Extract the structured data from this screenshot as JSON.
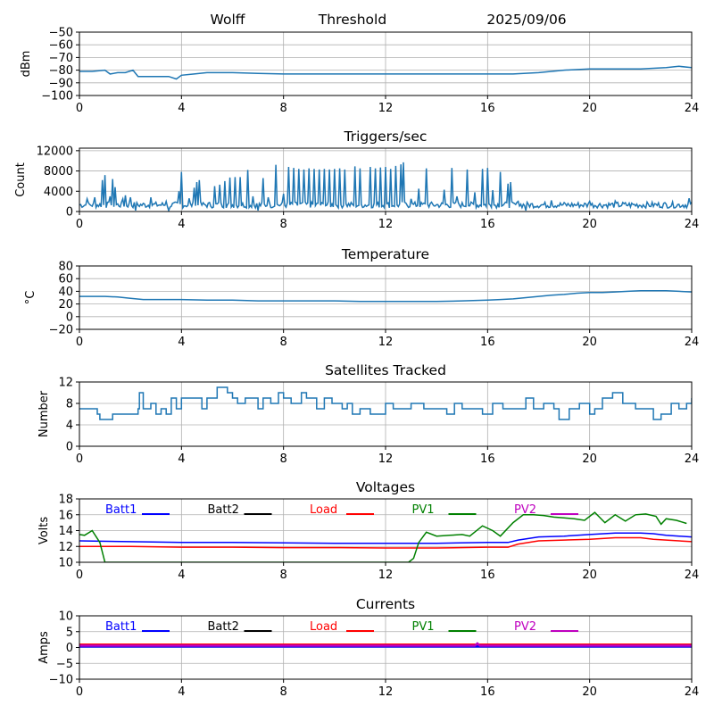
{
  "header": {
    "station": "Wolff",
    "mode": "Threshold",
    "date": "2025/09/06"
  },
  "x_ticks": [
    0,
    4,
    8,
    12,
    16,
    20,
    24
  ],
  "colors": {
    "line": "#1f77b4",
    "grid": "#b0b0b0",
    "Batt1": "#0000ff",
    "Batt2": "#000000",
    "Load": "#ff0000",
    "PV1": "#008000",
    "PV2": "#bf00bf"
  },
  "legend_labels": [
    "Batt1",
    "Batt2",
    "Load",
    "PV1",
    "PV2"
  ],
  "chart_data": [
    {
      "id": "threshold",
      "type": "line",
      "title": "",
      "ylabel": "dBm",
      "xlim": [
        0,
        24
      ],
      "ylim": [
        -100,
        -50
      ],
      "yticks": [
        -100,
        -90,
        -80,
        -70,
        -60,
        -50
      ],
      "yticklabels": [
        "−100",
        "−90",
        "−80",
        "−70",
        "−60",
        "−50"
      ],
      "series": [
        {
          "x": [
            0,
            0.5,
            1,
            1.2,
            1.5,
            1.8,
            2.1,
            2.3,
            2.5,
            3,
            3.5,
            3.8,
            4,
            4.5,
            5,
            6,
            7,
            8,
            9,
            10,
            11,
            12,
            13,
            14,
            15,
            16,
            17,
            18,
            19,
            20,
            21,
            22,
            23,
            23.5,
            24
          ],
          "y": [
            -81,
            -81,
            -80,
            -83,
            -82,
            -82,
            -80,
            -85,
            -85,
            -85,
            -85,
            -87,
            -84,
            -83,
            -82,
            -82,
            -82.5,
            -83,
            -83,
            -83,
            -83,
            -83,
            -83,
            -83,
            -83,
            -83,
            -83,
            -82,
            -80,
            -79,
            -79,
            -79,
            -78,
            -77,
            -78
          ]
        }
      ]
    },
    {
      "id": "triggers",
      "type": "line",
      "title": "Triggers/sec",
      "ylabel": "Count",
      "xlim": [
        0,
        24
      ],
      "ylim": [
        0,
        12500
      ],
      "yticks": [
        0,
        4000,
        8000,
        12000
      ],
      "yticklabels": [
        "0",
        "4000",
        "8000",
        "12000"
      ],
      "baseline": 1300,
      "spikes": [
        [
          0.3,
          2500
        ],
        [
          0.6,
          2800
        ],
        [
          0.9,
          6200
        ],
        [
          1.0,
          7200
        ],
        [
          1.2,
          3000
        ],
        [
          1.3,
          6400
        ],
        [
          1.4,
          4800
        ],
        [
          1.7,
          2500
        ],
        [
          1.8,
          3200
        ],
        [
          2.0,
          2800
        ],
        [
          2.8,
          2800
        ],
        [
          3.4,
          2000
        ],
        [
          3.9,
          4000
        ],
        [
          4.0,
          7800
        ],
        [
          4.3,
          2600
        ],
        [
          4.5,
          4700
        ],
        [
          4.6,
          5800
        ],
        [
          4.7,
          6200
        ],
        [
          5.3,
          5000
        ],
        [
          5.5,
          5300
        ],
        [
          5.7,
          6000
        ],
        [
          5.9,
          6700
        ],
        [
          6.1,
          6800
        ],
        [
          6.3,
          6800
        ],
        [
          6.6,
          8200
        ],
        [
          6.8,
          3000
        ],
        [
          7.2,
          6600
        ],
        [
          7.4,
          2800
        ],
        [
          7.7,
          9200
        ],
        [
          8.0,
          3500
        ],
        [
          8.2,
          8800
        ],
        [
          8.4,
          8600
        ],
        [
          8.6,
          8400
        ],
        [
          8.8,
          8300
        ],
        [
          9.0,
          8500
        ],
        [
          9.2,
          8400
        ],
        [
          9.4,
          8300
        ],
        [
          9.6,
          8400
        ],
        [
          9.8,
          8300
        ],
        [
          10.0,
          8400
        ],
        [
          10.2,
          8500
        ],
        [
          10.4,
          8300
        ],
        [
          10.8,
          8900
        ],
        [
          11.0,
          8500
        ],
        [
          11.4,
          8800
        ],
        [
          11.6,
          8500
        ],
        [
          11.8,
          8700
        ],
        [
          12.0,
          8800
        ],
        [
          12.2,
          8400
        ],
        [
          12.4,
          9000
        ],
        [
          12.6,
          9300
        ],
        [
          12.7,
          9700
        ],
        [
          13.0,
          2500
        ],
        [
          13.3,
          4500
        ],
        [
          13.6,
          8500
        ],
        [
          14.3,
          4300
        ],
        [
          14.6,
          8600
        ],
        [
          14.8,
          3000
        ],
        [
          15.2,
          8300
        ],
        [
          15.5,
          3800
        ],
        [
          15.8,
          8400
        ],
        [
          16.0,
          8600
        ],
        [
          16.2,
          4200
        ],
        [
          16.5,
          7800
        ],
        [
          16.8,
          5500
        ],
        [
          16.9,
          5800
        ],
        [
          17.2,
          2000
        ],
        [
          18.5,
          2200
        ],
        [
          20.0,
          2000
        ],
        [
          21.0,
          2100
        ],
        [
          23.9,
          2600
        ]
      ],
      "dips": [
        2.2,
        3.5,
        7.0,
        17.5
      ]
    },
    {
      "id": "temperature",
      "type": "line",
      "title": "Temperature",
      "ylabel": "°C",
      "xlim": [
        0,
        24
      ],
      "ylim": [
        -20,
        80
      ],
      "yticks": [
        -20,
        0,
        20,
        40,
        60,
        80
      ],
      "yticklabels": [
        "−20",
        "0",
        "20",
        "40",
        "60",
        "80"
      ],
      "series": [
        {
          "x": [
            0,
            0.5,
            1,
            1.5,
            2,
            2.5,
            3,
            4,
            5,
            6,
            7,
            8,
            9,
            10,
            11,
            12,
            13,
            14,
            15,
            16,
            16.5,
            17,
            17.5,
            18,
            18.5,
            19,
            19.5,
            20,
            20.5,
            21,
            21.5,
            22,
            22.5,
            23,
            23.5,
            24
          ],
          "y": [
            32,
            32,
            32,
            31,
            29,
            27,
            27,
            27,
            26,
            26,
            25,
            25,
            25,
            25,
            24,
            24,
            24,
            24,
            25,
            26,
            27,
            28,
            30,
            32,
            34,
            35,
            37,
            38,
            38,
            39,
            40,
            41,
            41,
            41,
            40,
            39
          ]
        }
      ]
    },
    {
      "id": "satellites",
      "type": "line",
      "title": "Satellites Tracked",
      "ylabel": "Number",
      "xlim": [
        0,
        24
      ],
      "ylim": [
        0,
        12
      ],
      "yticks": [
        0,
        4,
        8,
        12
      ],
      "yticklabels": [
        "0",
        "4",
        "8",
        "12"
      ],
      "series": [
        {
          "x": [
            0,
            0.6,
            0.7,
            0.8,
            1.2,
            1.3,
            2.3,
            2.35,
            2.5,
            2.8,
            3.0,
            3.2,
            3.4,
            3.6,
            3.8,
            4.0,
            4.5,
            4.8,
            5.0,
            5.2,
            5.4,
            5.8,
            6.0,
            6.2,
            6.5,
            7.0,
            7.2,
            7.5,
            7.8,
            8.0,
            8.3,
            8.7,
            8.9,
            9.3,
            9.6,
            9.9,
            10.3,
            10.5,
            10.7,
            11,
            11.4,
            12,
            12.3,
            12.6,
            13.0,
            13.5,
            14.0,
            14.4,
            14.7,
            15.0,
            15.4,
            15.8,
            16.2,
            16.6,
            17.0,
            17.5,
            17.8,
            18.2,
            18.6,
            18.8,
            19.2,
            19.6,
            20.0,
            20.2,
            20.5,
            20.9,
            21.3,
            21.8,
            22.2,
            22.5,
            22.8,
            23.2,
            23.5,
            23.8,
            24
          ],
          "y": [
            7,
            7,
            6,
            5,
            5,
            6,
            7,
            10,
            7,
            8,
            6,
            7,
            6,
            9,
            7,
            9,
            9,
            7,
            9,
            9,
            11,
            10,
            9,
            8,
            9,
            7,
            9,
            8,
            10,
            9,
            8,
            10,
            9,
            7,
            9,
            8,
            7,
            8,
            6,
            7,
            6,
            8,
            7,
            7,
            8,
            7,
            7,
            6,
            8,
            7,
            7,
            6,
            8,
            7,
            7,
            9,
            7,
            8,
            7,
            5,
            7,
            8,
            6,
            7,
            9,
            10,
            8,
            7,
            7,
            5,
            6,
            8,
            7,
            8,
            9
          ]
        }
      ]
    },
    {
      "id": "voltages",
      "type": "line",
      "title": "Voltages",
      "ylabel": "Volts",
      "xlim": [
        0,
        24
      ],
      "ylim": [
        10,
        18
      ],
      "yticks": [
        10,
        12,
        14,
        16,
        18
      ],
      "yticklabels": [
        "10",
        "12",
        "14",
        "16",
        "18"
      ],
      "series": [
        {
          "name": "Batt1",
          "x": [
            0,
            2,
            4,
            6,
            8,
            10,
            12,
            14,
            16,
            16.8,
            17.2,
            18,
            19,
            20,
            21,
            22,
            22.5,
            23,
            24
          ],
          "y": [
            12.7,
            12.6,
            12.5,
            12.5,
            12.45,
            12.4,
            12.4,
            12.4,
            12.5,
            12.5,
            12.8,
            13.2,
            13.3,
            13.5,
            13.7,
            13.7,
            13.6,
            13.4,
            13.2
          ]
        },
        {
          "name": "Load",
          "x": [
            0,
            2,
            4,
            6,
            8,
            10,
            12,
            14,
            16,
            16.8,
            17.2,
            18,
            19,
            20,
            21,
            22,
            22.5,
            23,
            24
          ],
          "y": [
            12.0,
            12.0,
            11.9,
            11.9,
            11.85,
            11.85,
            11.8,
            11.8,
            11.9,
            11.9,
            12.3,
            12.7,
            12.8,
            12.9,
            13.1,
            13.1,
            12.9,
            12.8,
            12.6
          ]
        },
        {
          "name": "PV1",
          "x": [
            0,
            0.2,
            0.5,
            0.8,
            1.0,
            1.05,
            12.9,
            13.1,
            13.3,
            13.6,
            14.0,
            14.5,
            15.0,
            15.3,
            15.8,
            16.2,
            16.5,
            17.0,
            17.4,
            17.8,
            18.2,
            18.6,
            19.0,
            19.4,
            19.8,
            20.2,
            20.6,
            21.0,
            21.4,
            21.8,
            22.2,
            22.6,
            22.8,
            23.0,
            23.4,
            23.8
          ],
          "y": [
            13.5,
            13.4,
            14.0,
            12.5,
            10.0,
            10.0,
            10.0,
            10.5,
            12.5,
            13.8,
            13.3,
            13.4,
            13.5,
            13.3,
            14.6,
            14.0,
            13.3,
            15.0,
            16.0,
            16.0,
            15.9,
            15.7,
            15.6,
            15.5,
            15.3,
            16.3,
            15.0,
            16.0,
            15.2,
            16.0,
            16.1,
            15.8,
            14.8,
            15.5,
            15.3,
            14.9
          ]
        },
        {
          "name": "Batt2",
          "x": [],
          "y": []
        },
        {
          "name": "PV2",
          "x": [],
          "y": []
        }
      ]
    },
    {
      "id": "currents",
      "type": "line",
      "title": "Currents",
      "ylabel": "Amps",
      "xlim": [
        0,
        24
      ],
      "ylim": [
        -10,
        10
      ],
      "yticks": [
        -10,
        -5,
        0,
        5,
        10
      ],
      "yticklabels": [
        "−10",
        "−5",
        "0",
        "5",
        "10"
      ],
      "series": [
        {
          "name": "Load",
          "x": [
            0,
            24
          ],
          "y": [
            0.9,
            0.9
          ]
        },
        {
          "name": "Batt1",
          "x": [
            0,
            24
          ],
          "y": [
            0.3,
            0.3
          ]
        },
        {
          "name": "PV2",
          "x": [
            0,
            15.5,
            15.6,
            15.7,
            24
          ],
          "y": [
            0.6,
            0.6,
            1.3,
            0.6,
            0.6
          ]
        },
        {
          "name": "PV1",
          "x": [],
          "y": []
        },
        {
          "name": "Batt2",
          "x": [],
          "y": []
        }
      ]
    }
  ]
}
